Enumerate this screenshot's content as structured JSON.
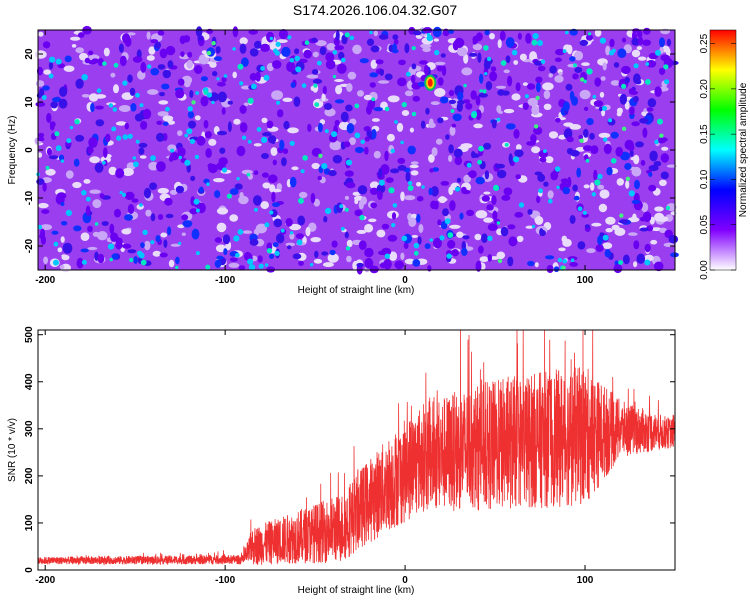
{
  "title": "S174.2026.106.04.32.G07",
  "chart_data": [
    {
      "type": "heatmap",
      "xlabel": "Height of straight line (km)",
      "ylabel": "Frequency (Hz)",
      "xlim": [
        -204,
        150
      ],
      "ylim": [
        -25,
        25
      ],
      "xticks": [
        -200,
        -100,
        0,
        100
      ],
      "yticks": [
        -20,
        -10,
        0,
        10,
        20
      ],
      "colorbar": {
        "label": "Normalized spectral amplitude",
        "range": [
          0,
          0.265
        ],
        "ticks": [
          "0.00",
          "0.05",
          "0.10",
          "0.15",
          "0.20",
          "0.25"
        ],
        "colors": [
          "#ffffff",
          "#8000ff",
          "#0000ff",
          "#00ffff",
          "#00ff00",
          "#ffff00",
          "#ff0000"
        ]
      },
      "peak": {
        "x": 14,
        "y": 14,
        "value": 0.26
      },
      "background_level": 0.05
    },
    {
      "type": "line",
      "xlabel": "Height of straight line (km)",
      "ylabel": "SNR (10 * v/v)",
      "xlim": [
        -204,
        150
      ],
      "ylim": [
        0,
        510
      ],
      "xticks": [
        -200,
        -100,
        0,
        100
      ],
      "yticks": [
        0,
        100,
        200,
        300,
        400,
        500
      ],
      "line_color": "#ee3030",
      "trend": [
        [
          -204,
          20
        ],
        [
          -90,
          22
        ],
        [
          -85,
          50
        ],
        [
          -60,
          70
        ],
        [
          -35,
          90
        ],
        [
          -25,
          130
        ],
        [
          -10,
          180
        ],
        [
          10,
          240
        ],
        [
          40,
          260
        ],
        [
          70,
          275
        ],
        [
          100,
          285
        ],
        [
          120,
          300
        ],
        [
          150,
          290
        ]
      ],
      "noise_amplitude": [
        [
          -204,
          8
        ],
        [
          -90,
          10
        ],
        [
          -85,
          40
        ],
        [
          -40,
          70
        ],
        [
          -20,
          90
        ],
        [
          0,
          110
        ],
        [
          50,
          140
        ],
        [
          100,
          150
        ],
        [
          120,
          60
        ],
        [
          150,
          30
        ]
      ]
    }
  ]
}
